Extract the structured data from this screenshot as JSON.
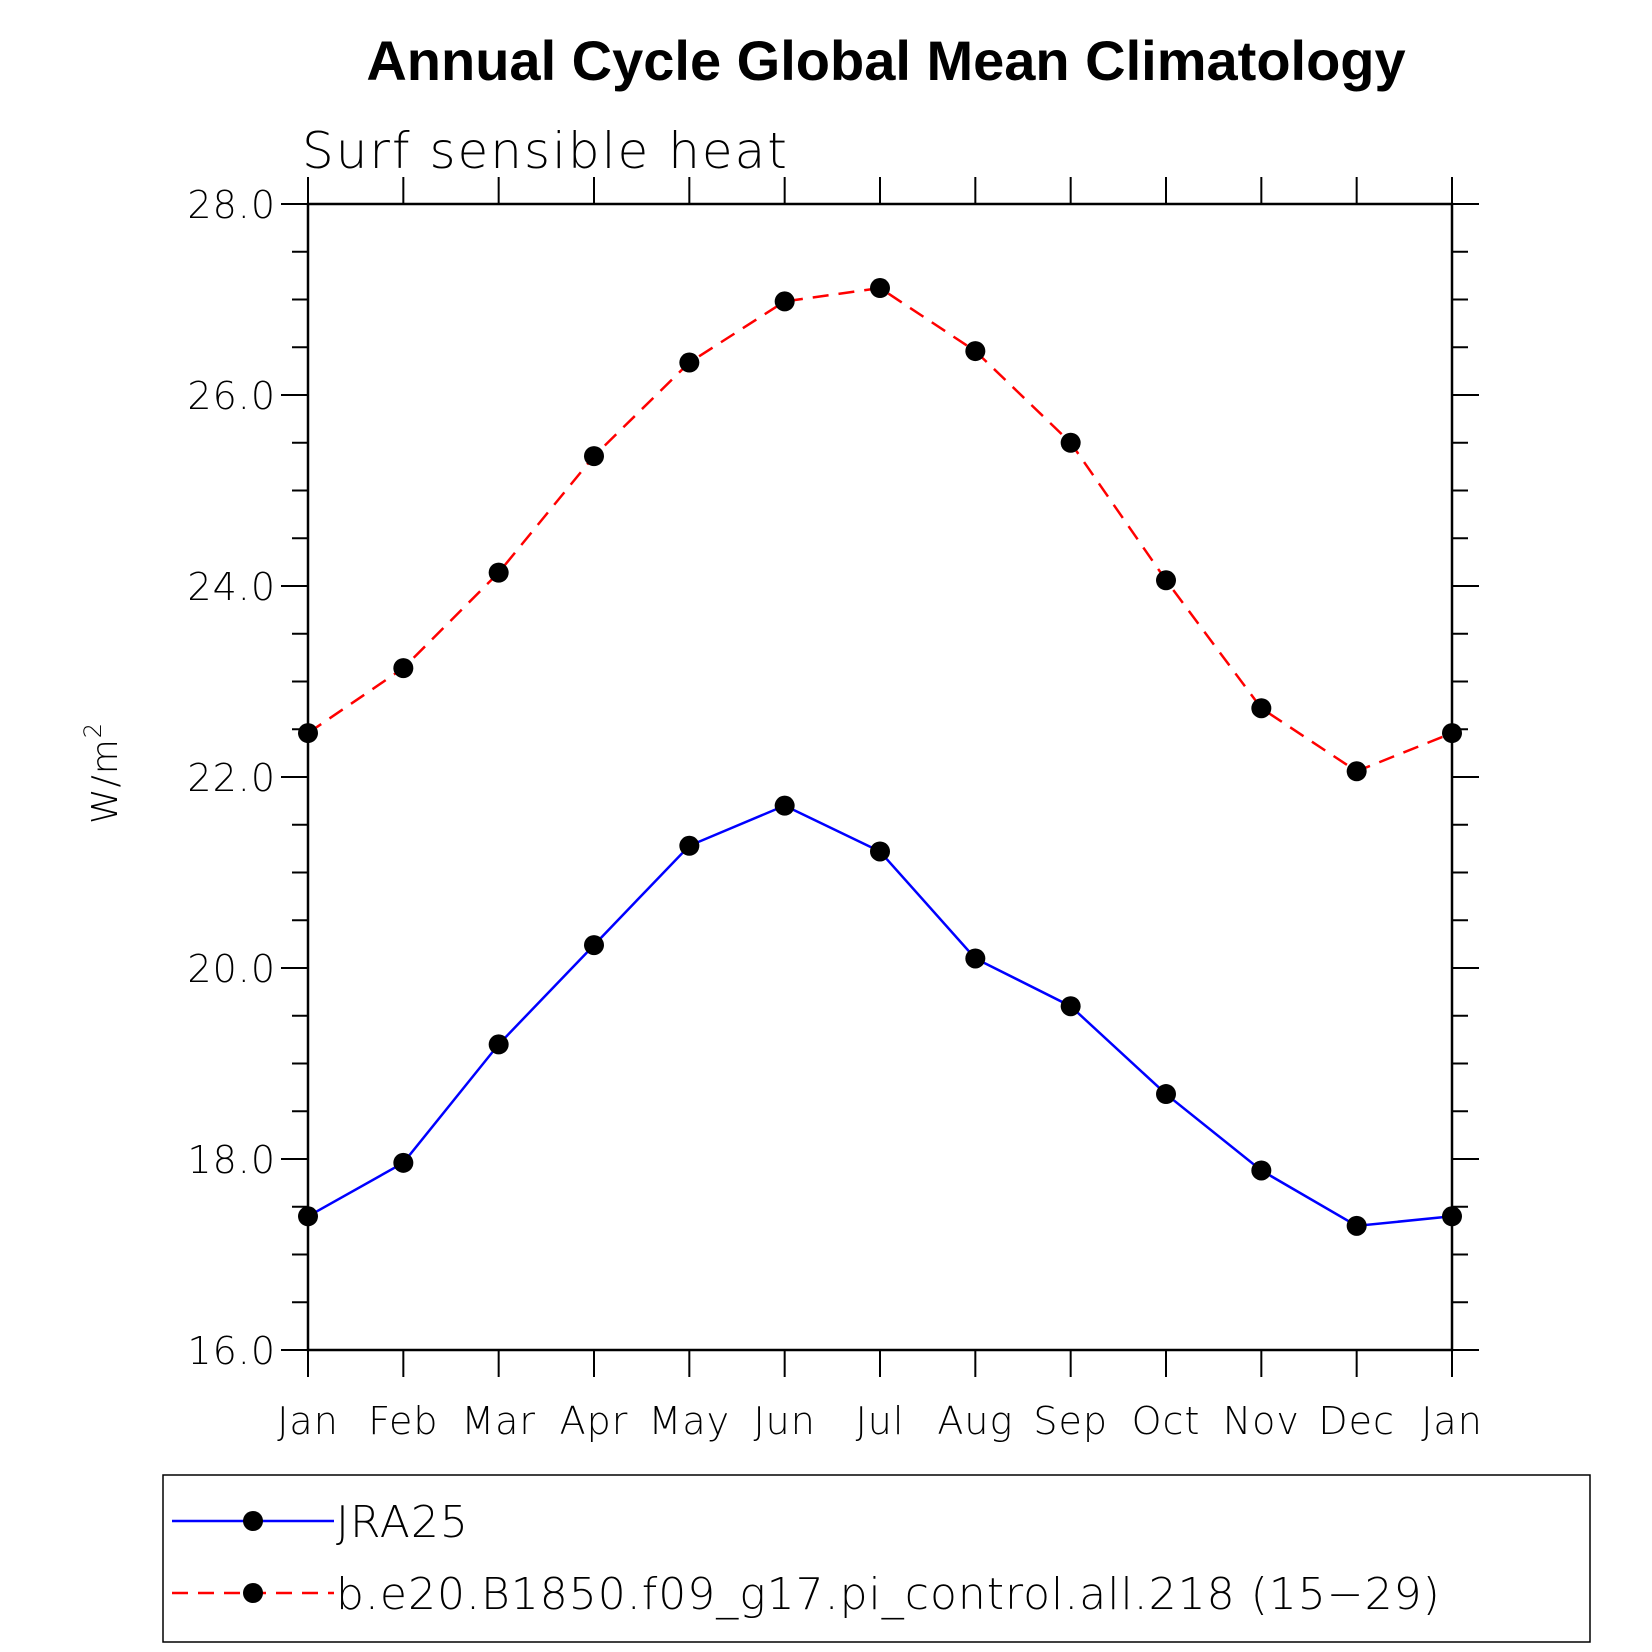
{
  "colors": {
    "series_1": "#0000ff",
    "series_2": "#ff0000",
    "marker": "#000000",
    "axis": "#000000",
    "background": "#ffffff"
  },
  "chart_data": {
    "type": "line",
    "title": "Annual Cycle Global Mean Climatology",
    "subtitle": "Surf sensible heat",
    "xlabel": "",
    "ylabel": "W/m",
    "ylabel_superscript": "2",
    "categories": [
      "Jan",
      "Feb",
      "Mar",
      "Apr",
      "May",
      "Jun",
      "Jul",
      "Aug",
      "Sep",
      "Oct",
      "Nov",
      "Dec",
      "Jan"
    ],
    "ylim": [
      16.0,
      28.0
    ],
    "y_ticks": [
      "16.0",
      "18.0",
      "20.0",
      "22.0",
      "24.0",
      "26.0",
      "28.0"
    ],
    "grid": false,
    "legend_position": "bottom",
    "series": [
      {
        "name": "JRA25",
        "line_style": "solid",
        "marker": "filled-circle",
        "values": [
          17.4,
          17.96,
          19.2,
          20.24,
          21.28,
          21.7,
          21.22,
          20.1,
          19.6,
          18.68,
          17.88,
          17.3,
          17.4
        ]
      },
      {
        "name": "b.e20.B1850.f09_g17.pi_control.all.218 (15−29)",
        "line_style": "dashed",
        "marker": "filled-circle",
        "values": [
          22.46,
          23.14,
          24.14,
          25.36,
          26.34,
          26.98,
          27.12,
          26.46,
          25.5,
          24.06,
          22.72,
          22.06,
          22.46
        ]
      }
    ]
  }
}
